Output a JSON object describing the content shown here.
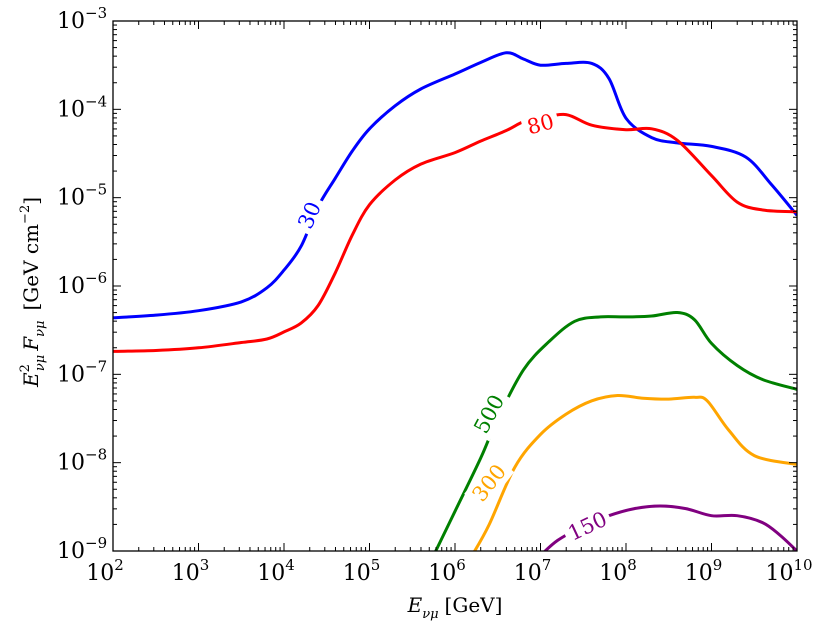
{
  "chart_data": {
    "type": "line",
    "title": "",
    "xlabel": {
      "main": "E",
      "sub": "νμ",
      "unit": "[GeV]"
    },
    "ylabel": {
      "part1": "E",
      "sup": "2",
      "sub1": "νμ",
      "part2": "F",
      "sub2": "νμ",
      "unit": "[GeV cm",
      "unit_exp": "−2",
      "unit_end": "]"
    },
    "x_scale": "log",
    "y_scale": "log",
    "xlim_log10": [
      2,
      10
    ],
    "ylim_log10": [
      -9,
      -3
    ],
    "x_ticks": [
      {
        "log": 2,
        "base": "10",
        "exp": "2"
      },
      {
        "log": 3,
        "base": "10",
        "exp": "3"
      },
      {
        "log": 4,
        "base": "10",
        "exp": "4"
      },
      {
        "log": 5,
        "base": "10",
        "exp": "5"
      },
      {
        "log": 6,
        "base": "10",
        "exp": "6"
      },
      {
        "log": 7,
        "base": "10",
        "exp": "7"
      },
      {
        "log": 8,
        "base": "10",
        "exp": "8"
      },
      {
        "log": 9,
        "base": "10",
        "exp": "9"
      },
      {
        "log": 10,
        "base": "10",
        "exp": "10"
      }
    ],
    "y_ticks": [
      {
        "log": -9,
        "base": "10",
        "exp": "−9"
      },
      {
        "log": -8,
        "base": "10",
        "exp": "−8"
      },
      {
        "log": -7,
        "base": "10",
        "exp": "−7"
      },
      {
        "log": -6,
        "base": "10",
        "exp": "−6"
      },
      {
        "log": -5,
        "base": "10",
        "exp": "−5"
      },
      {
        "log": -4,
        "base": "10",
        "exp": "−4"
      },
      {
        "log": -3,
        "base": "10",
        "exp": "−3"
      }
    ],
    "grid": false,
    "series": [
      {
        "name": "30",
        "color": "#0000ff",
        "label_at": [
          4.3,
          -5.2
        ],
        "label_angle": -66,
        "points": [
          [
            2,
            -6.36
          ],
          [
            2.5,
            -6.33
          ],
          [
            3,
            -6.28
          ],
          [
            3.5,
            -6.18
          ],
          [
            3.8,
            -6.02
          ],
          [
            4.0,
            -5.82
          ],
          [
            4.2,
            -5.55
          ],
          [
            4.4,
            -5.1
          ],
          [
            4.6,
            -4.78
          ],
          [
            4.8,
            -4.47
          ],
          [
            5.0,
            -4.22
          ],
          [
            5.3,
            -3.96
          ],
          [
            5.6,
            -3.77
          ],
          [
            6.0,
            -3.6
          ],
          [
            6.3,
            -3.47
          ],
          [
            6.6,
            -3.36
          ],
          [
            6.8,
            -3.43
          ],
          [
            7.0,
            -3.5
          ],
          [
            7.3,
            -3.48
          ],
          [
            7.6,
            -3.48
          ],
          [
            7.8,
            -3.65
          ],
          [
            8.0,
            -4.1
          ],
          [
            8.3,
            -4.32
          ],
          [
            8.6,
            -4.38
          ],
          [
            9.0,
            -4.42
          ],
          [
            9.4,
            -4.54
          ],
          [
            9.7,
            -4.85
          ],
          [
            10.0,
            -5.2
          ]
        ]
      },
      {
        "name": "80",
        "color": "#ff0000",
        "label_at": [
          7.0,
          -4.17
        ],
        "label_angle": -15,
        "points": [
          [
            2,
            -6.74
          ],
          [
            2.5,
            -6.73
          ],
          [
            3,
            -6.7
          ],
          [
            3.5,
            -6.64
          ],
          [
            3.8,
            -6.6
          ],
          [
            4.0,
            -6.52
          ],
          [
            4.2,
            -6.42
          ],
          [
            4.4,
            -6.22
          ],
          [
            4.6,
            -5.85
          ],
          [
            4.8,
            -5.42
          ],
          [
            5.0,
            -5.08
          ],
          [
            5.3,
            -4.8
          ],
          [
            5.6,
            -4.62
          ],
          [
            6.0,
            -4.49
          ],
          [
            6.3,
            -4.36
          ],
          [
            6.6,
            -4.24
          ],
          [
            6.8,
            -4.14
          ],
          [
            7.0,
            -4.1
          ],
          [
            7.3,
            -4.06
          ],
          [
            7.6,
            -4.18
          ],
          [
            8.0,
            -4.23
          ],
          [
            8.3,
            -4.22
          ],
          [
            8.6,
            -4.35
          ],
          [
            9.0,
            -4.75
          ],
          [
            9.3,
            -5.05
          ],
          [
            9.6,
            -5.14
          ],
          [
            10.0,
            -5.16
          ]
        ]
      },
      {
        "name": "500",
        "color": "#008000",
        "label_at": [
          6.4,
          -7.45
        ],
        "label_angle": -62,
        "points": [
          [
            5.75,
            -9.05
          ],
          [
            6.0,
            -8.55
          ],
          [
            6.3,
            -7.95
          ],
          [
            6.5,
            -7.5
          ],
          [
            6.8,
            -6.95
          ],
          [
            7.1,
            -6.63
          ],
          [
            7.4,
            -6.4
          ],
          [
            7.7,
            -6.35
          ],
          [
            8.0,
            -6.35
          ],
          [
            8.3,
            -6.34
          ],
          [
            8.6,
            -6.3
          ],
          [
            8.8,
            -6.38
          ],
          [
            9.0,
            -6.65
          ],
          [
            9.3,
            -6.9
          ],
          [
            9.6,
            -7.06
          ],
          [
            10.0,
            -7.17
          ]
        ]
      },
      {
        "name": "300",
        "color": "#ffa500",
        "label_at": [
          6.4,
          -8.23
        ],
        "label_angle": -52,
        "points": [
          [
            6.2,
            -9.05
          ],
          [
            6.4,
            -8.7
          ],
          [
            6.7,
            -8.05
          ],
          [
            7.0,
            -7.68
          ],
          [
            7.3,
            -7.45
          ],
          [
            7.6,
            -7.3
          ],
          [
            7.9,
            -7.24
          ],
          [
            8.2,
            -7.27
          ],
          [
            8.5,
            -7.28
          ],
          [
            8.8,
            -7.26
          ],
          [
            8.95,
            -7.3
          ],
          [
            9.2,
            -7.63
          ],
          [
            9.5,
            -7.92
          ],
          [
            10.0,
            -8.02
          ]
        ]
      },
      {
        "name": "150",
        "color": "#800080",
        "label_at": [
          7.55,
          -8.72
        ],
        "label_angle": -25,
        "points": [
          [
            7.0,
            -9.05
          ],
          [
            7.2,
            -8.88
          ],
          [
            7.5,
            -8.72
          ],
          [
            7.8,
            -8.6
          ],
          [
            8.1,
            -8.52
          ],
          [
            8.4,
            -8.49
          ],
          [
            8.7,
            -8.52
          ],
          [
            9.0,
            -8.6
          ],
          [
            9.3,
            -8.6
          ],
          [
            9.6,
            -8.68
          ],
          [
            9.8,
            -8.82
          ],
          [
            10.0,
            -9.0
          ]
        ]
      }
    ]
  }
}
